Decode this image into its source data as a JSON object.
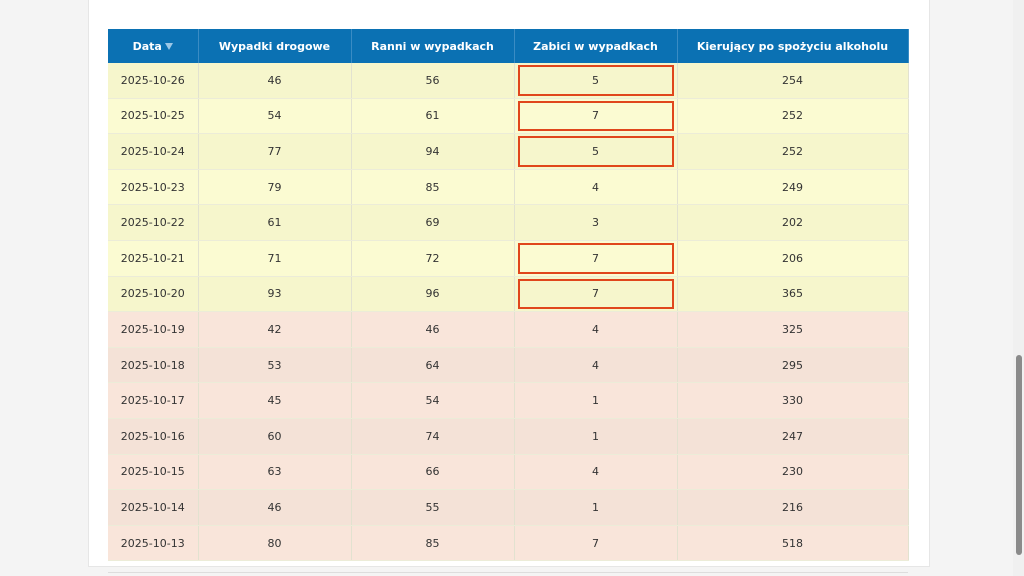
{
  "table": {
    "headers": [
      "Data",
      "Wypadki drogowe",
      "Ranni w wypadkach",
      "Zabici w wypadkach",
      "Kierujący po spożyciu alkoholu"
    ],
    "rows": [
      [
        "2025-10-26",
        46,
        56,
        5,
        254
      ],
      [
        "2025-10-25",
        54,
        61,
        7,
        252
      ],
      [
        "2025-10-24",
        77,
        94,
        5,
        252
      ],
      [
        "2025-10-23",
        79,
        85,
        4,
        249
      ],
      [
        "2025-10-22",
        61,
        69,
        3,
        202
      ],
      [
        "2025-10-21",
        71,
        72,
        7,
        206
      ],
      [
        "2025-10-20",
        93,
        96,
        7,
        365
      ],
      [
        "2025-10-19",
        42,
        46,
        4,
        325
      ],
      [
        "2025-10-18",
        53,
        64,
        4,
        295
      ],
      [
        "2025-10-17",
        45,
        54,
        1,
        330
      ],
      [
        "2025-10-16",
        60,
        74,
        1,
        247
      ],
      [
        "2025-10-15",
        63,
        66,
        4,
        230
      ],
      [
        "2025-10-14",
        46,
        55,
        1,
        216
      ],
      [
        "2025-10-13",
        80,
        85,
        7,
        518
      ]
    ]
  }
}
